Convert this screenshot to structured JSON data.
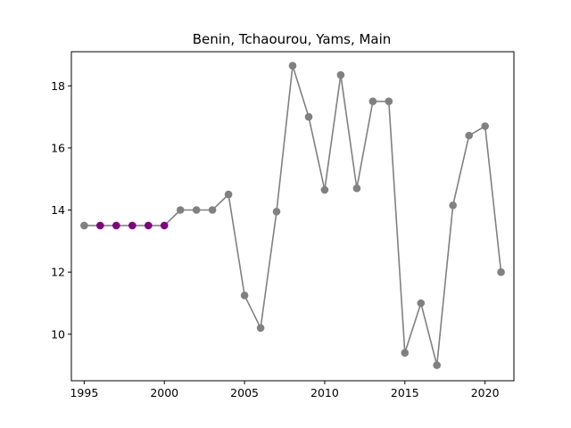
{
  "chart_data": {
    "type": "line",
    "title": "Benin, Tchaourou, Yams, Main",
    "xlabel": "",
    "ylabel": "",
    "xlim": [
      1994.2,
      2021.8
    ],
    "ylim": [
      8.5,
      19.1
    ],
    "xticks": [
      1995,
      2000,
      2005,
      2010,
      2015,
      2020
    ],
    "yticks": [
      10,
      12,
      14,
      16,
      18
    ],
    "grid": false,
    "line_color": "#808080",
    "highlight_color": "#800080",
    "series": [
      {
        "x": [
          1995,
          1996,
          1997,
          1998,
          1999,
          2000,
          2001,
          2002,
          2003,
          2004,
          2005,
          2006,
          2007,
          2008,
          2009,
          2010,
          2011,
          2012,
          2013,
          2014,
          2015,
          2016,
          2017,
          2018,
          2019,
          2020,
          2021
        ],
        "values": [
          13.5,
          13.5,
          13.5,
          13.5,
          13.5,
          13.5,
          14.0,
          14.0,
          14.0,
          14.5,
          11.25,
          10.2,
          13.95,
          18.65,
          17.0,
          14.65,
          18.35,
          14.7,
          17.5,
          17.5,
          9.4,
          11.0,
          9.0,
          14.15,
          16.4,
          16.7,
          12.0
        ],
        "highlighted_x": [
          1996,
          1997,
          1998,
          1999,
          2000
        ]
      }
    ]
  }
}
